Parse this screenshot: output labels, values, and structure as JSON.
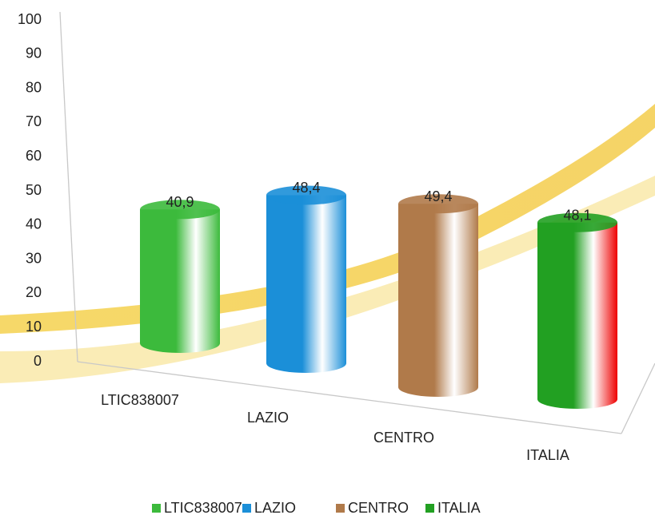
{
  "chart_data": {
    "type": "bar3d",
    "categories": [
      "LTIC838007",
      "LAZIO",
      "CENTRO",
      "ITALIA"
    ],
    "values": [
      40.9,
      48.4,
      49.4,
      48.1
    ],
    "value_labels": [
      "40,9",
      "48,4",
      "49,4",
      "48,1"
    ],
    "colors": [
      "#3cba3c",
      "#1b8fd8",
      "#b07a4a",
      "#22a022"
    ],
    "ylim": [
      0,
      100
    ],
    "yticks": [
      0,
      10,
      20,
      30,
      40,
      50,
      60,
      70,
      80,
      90,
      100
    ],
    "legend": "bottom"
  }
}
